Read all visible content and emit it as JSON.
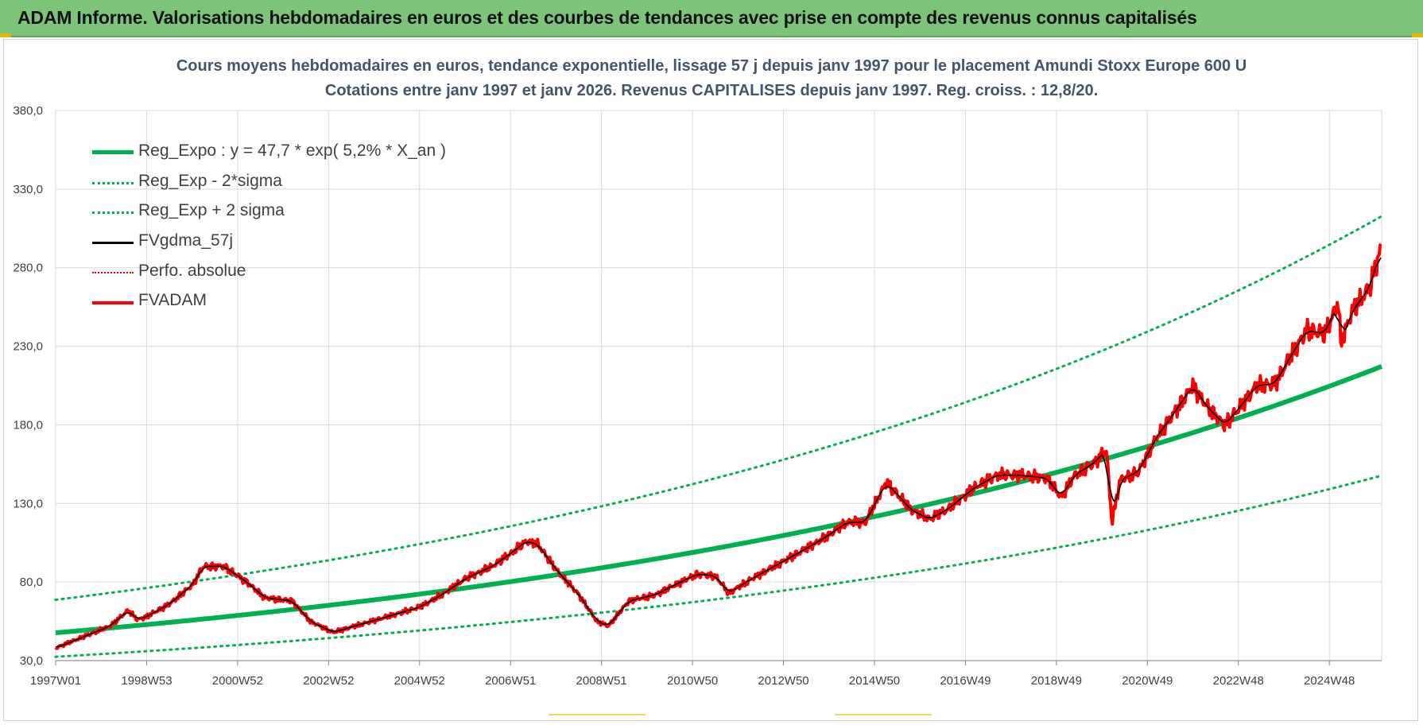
{
  "banner": {
    "title": "ADAM Informe. Valorisations hebdomadaires en euros et des courbes de tendances avec prise en compte des revenus connus capitalisés"
  },
  "chart_data": {
    "type": "line",
    "title_line1": "Cours moyens hebdomadaires en euros, tendance exponentielle, lissage 57 j depuis janv 1997  pour le placement Amundi Stoxx Europe 600 U",
    "title_line2": "Cotations entre janv 1997 et janv 2026. Revenus CAPITALISES depuis janv 1997. Reg. croiss. : 12,8/20.",
    "y_ticks": [
      "30,0",
      "80,0",
      "130,0",
      "180,0",
      "230,0",
      "280,0",
      "330,0",
      "380,0"
    ],
    "x_ticks": [
      "1997W01",
      "1998W53",
      "2000W52",
      "2002W52",
      "2004W52",
      "2006W51",
      "2008W51",
      "2010W50",
      "2012W50",
      "2014W50",
      "2016W49",
      "2018W49",
      "2020W49",
      "2022W48",
      "2024W48"
    ],
    "x_tick_years": [
      1997.0,
      1999.0,
      2001.0,
      2003.0,
      2005.0,
      2007.0,
      2009.0,
      2011.0,
      2013.0,
      2015.0,
      2017.0,
      2019.0,
      2021.0,
      2023.0,
      2025.0
    ],
    "xlim": [
      1997.0,
      2026.15
    ],
    "ylim": [
      30,
      380
    ],
    "grid": true,
    "legend_position": "top-left",
    "regression": {
      "a": 47.7,
      "rate": 0.052,
      "sigma_factor_low": 0.68,
      "sigma_factor_high": 1.44
    },
    "legend": [
      {
        "label": "Reg_Expo : y = 47,7 * exp( 5,2% *  X_an )",
        "color": "#00b050",
        "style": "solid-thick"
      },
      {
        "label": "Reg_Exp - 2*sigma",
        "color": "#00b050",
        "style": "dotted"
      },
      {
        "label": "Reg_Exp + 2 sigma",
        "color": "#00b050",
        "style": "dotted"
      },
      {
        "label": "FVgdma_57j",
        "color": "#000000",
        "style": "solid"
      },
      {
        "label": "Perfo. absolue",
        "color": "#ff0000",
        "style": "dotted"
      },
      {
        "label": "FVADAM",
        "color": "#ff0000",
        "style": "solid-thick"
      }
    ],
    "fvadam_keypoints": [
      [
        1997.0,
        38
      ],
      [
        1997.6,
        45
      ],
      [
        1998.2,
        52
      ],
      [
        1998.6,
        62
      ],
      [
        1998.8,
        56
      ],
      [
        1999.0,
        58
      ],
      [
        1999.5,
        66
      ],
      [
        2000.0,
        78
      ],
      [
        2000.25,
        90
      ],
      [
        2000.7,
        90
      ],
      [
        2001.2,
        80
      ],
      [
        2001.6,
        70
      ],
      [
        2002.2,
        68
      ],
      [
        2002.6,
        55
      ],
      [
        2003.1,
        48
      ],
      [
        2003.7,
        53
      ],
      [
        2004.3,
        58
      ],
      [
        2005.0,
        64
      ],
      [
        2005.5,
        72
      ],
      [
        2006.0,
        82
      ],
      [
        2006.6,
        90
      ],
      [
        2007.0,
        98
      ],
      [
        2007.35,
        106
      ],
      [
        2007.6,
        104
      ],
      [
        2008.0,
        88
      ],
      [
        2008.5,
        72
      ],
      [
        2008.9,
        55
      ],
      [
        2009.15,
        52
      ],
      [
        2009.6,
        68
      ],
      [
        2010.2,
        72
      ],
      [
        2010.6,
        78
      ],
      [
        2011.1,
        85
      ],
      [
        2011.5,
        84
      ],
      [
        2011.8,
        73
      ],
      [
        2012.3,
        82
      ],
      [
        2012.8,
        90
      ],
      [
        2013.3,
        98
      ],
      [
        2013.9,
        108
      ],
      [
        2014.4,
        118
      ],
      [
        2014.8,
        118
      ],
      [
        2015.25,
        143
      ],
      [
        2015.5,
        136
      ],
      [
        2015.8,
        126
      ],
      [
        2016.2,
        120
      ],
      [
        2016.6,
        126
      ],
      [
        2017.2,
        140
      ],
      [
        2017.7,
        148
      ],
      [
        2018.2,
        148
      ],
      [
        2018.8,
        146
      ],
      [
        2019.1,
        134
      ],
      [
        2019.4,
        148
      ],
      [
        2019.8,
        155
      ],
      [
        2020.1,
        164
      ],
      [
        2020.22,
        118
      ],
      [
        2020.4,
        145
      ],
      [
        2020.8,
        150
      ],
      [
        2021.2,
        172
      ],
      [
        2021.6,
        188
      ],
      [
        2022.0,
        205
      ],
      [
        2022.3,
        192
      ],
      [
        2022.7,
        180
      ],
      [
        2023.0,
        190
      ],
      [
        2023.4,
        205
      ],
      [
        2023.8,
        206
      ],
      [
        2024.2,
        226
      ],
      [
        2024.5,
        240
      ],
      [
        2024.9,
        238
      ],
      [
        2025.2,
        258
      ],
      [
        2025.25,
        232
      ],
      [
        2025.5,
        252
      ],
      [
        2025.9,
        268
      ],
      [
        2026.15,
        294
      ]
    ]
  }
}
